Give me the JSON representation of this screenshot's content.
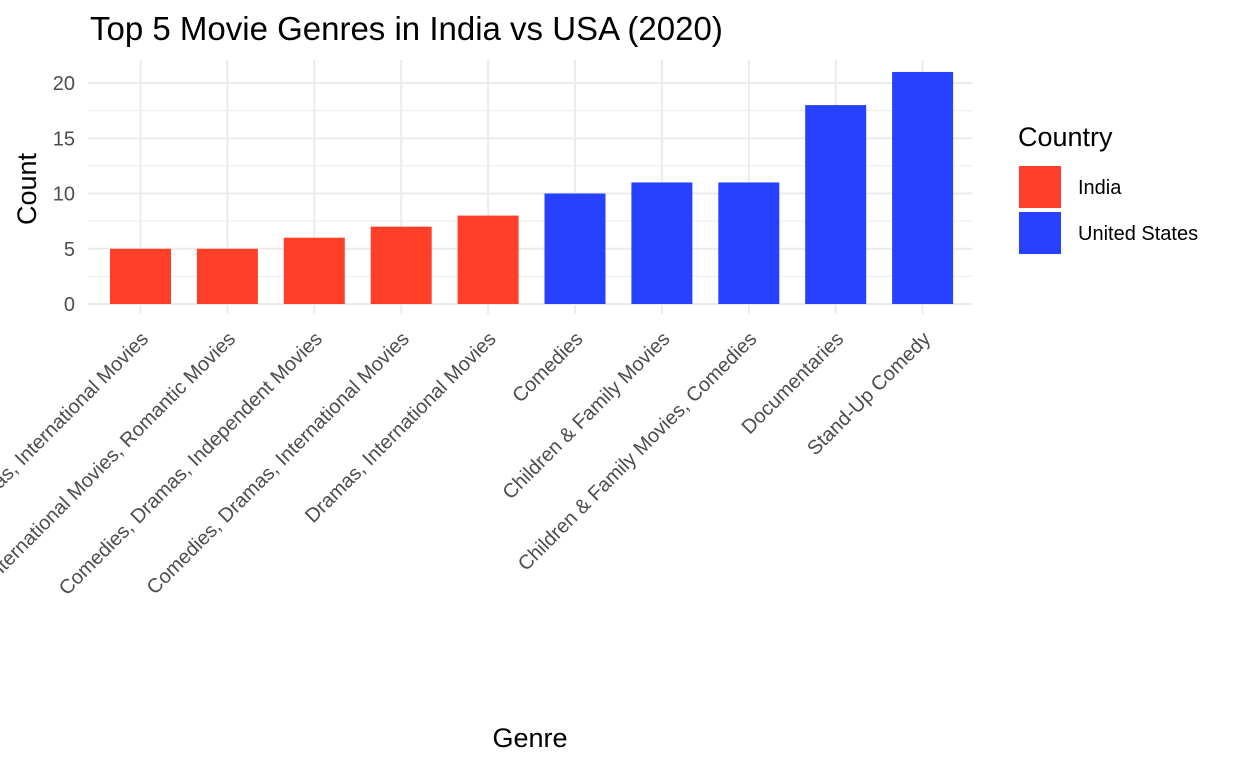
{
  "chart_data": {
    "type": "bar",
    "title": "Top 5 Movie Genres in India vs USA (2020)",
    "xlabel": "Genre",
    "ylabel": "Count",
    "ylim": [
      0,
      22
    ],
    "yticks": [
      "0",
      "5",
      "10",
      "15",
      "20"
    ],
    "grid": true,
    "legend": {
      "title": "Country",
      "position": "right",
      "entries": [
        {
          "label": "India",
          "color": "#FF3F28"
        },
        {
          "label": "United States",
          "color": "#2841FF"
        }
      ]
    },
    "categories": [
      "Dramas, International Movies",
      "International Movies, Romantic Movies",
      "Comedies, Dramas, Independent Movies",
      "Comedies, Dramas, International Movies",
      "Dramas, International Movies",
      "Comedies",
      "Children & Family Movies",
      "Children & Family Movies, Comedies",
      "Documentaries",
      "Stand-Up Comedy"
    ],
    "values": [
      5,
      5,
      6,
      7,
      8,
      10,
      11,
      11,
      18,
      21
    ],
    "groups": [
      "India",
      "India",
      "India",
      "India",
      "India",
      "United States",
      "United States",
      "United States",
      "United States",
      "United States"
    ]
  }
}
